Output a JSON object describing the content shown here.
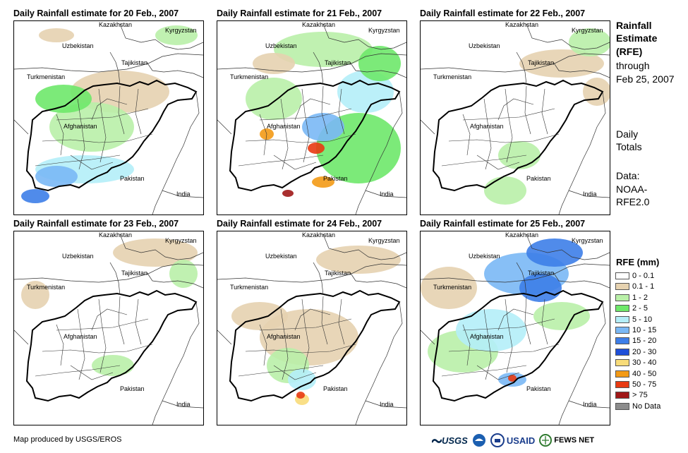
{
  "panels": [
    {
      "title": "Daily Rainfall estimate for 20 Feb., 2007",
      "pattern": "p20"
    },
    {
      "title": "Daily Rainfall estimate for 21 Feb., 2007",
      "pattern": "p21"
    },
    {
      "title": "Daily Rainfall estimate for 22 Feb., 2007",
      "pattern": "p22"
    },
    {
      "title": "Daily Rainfall estimate for 23 Feb., 2007",
      "pattern": "p23"
    },
    {
      "title": "Daily Rainfall estimate for 24 Feb., 2007",
      "pattern": "p24"
    },
    {
      "title": "Daily Rainfall estimate for 25 Feb., 2007",
      "pattern": "p25"
    }
  ],
  "map_labels": {
    "kazakhstan": "Kazakhstan",
    "kyrgyzstan": "Kyrgyzstan",
    "uzbekistan": "Uzbekistan",
    "tajikistan": "Tajikistan",
    "turkmenistan": "Turkmenistan",
    "afghanistan": "Afghanistan",
    "pakistan": "Pakistan",
    "india": "India"
  },
  "side_text": {
    "title_line1": "Rainfall",
    "title_line2": "Estimate",
    "title_line3": "(RFE)",
    "through": "through",
    "date": "Feb 25, 2007",
    "daily": "Daily",
    "totals": "Totals",
    "data_label": "Data:",
    "source1": "NOAA-",
    "source2": "RFE2.0"
  },
  "legend": {
    "title": "RFE (mm)",
    "items": [
      {
        "label": "0 - 0.1",
        "color": "#ffffff"
      },
      {
        "label": "0.1 - 1",
        "color": "#e6d2b0"
      },
      {
        "label": "1 - 2",
        "color": "#b9f0a8"
      },
      {
        "label": "2 - 5",
        "color": "#6ee86a"
      },
      {
        "label": "5 - 10",
        "color": "#b4eef8"
      },
      {
        "label": "10 - 15",
        "color": "#7ab8f5"
      },
      {
        "label": "15 - 20",
        "color": "#3d7ee8"
      },
      {
        "label": "20 - 30",
        "color": "#1f4fd8"
      },
      {
        "label": "30 - 40",
        "color": "#f8dc7a"
      },
      {
        "label": "40 - 50",
        "color": "#f39a16"
      },
      {
        "label": "50 - 75",
        "color": "#e83a12"
      },
      {
        "label": "> 75",
        "color": "#a01818"
      },
      {
        "label": "No Data",
        "color": "#8c8c8c"
      }
    ]
  },
  "credit": "Map produced by USGS/EROS",
  "logos": {
    "usgs": "USGS",
    "usaid": "USAID",
    "fewsnet": "FEWS NET"
  }
}
